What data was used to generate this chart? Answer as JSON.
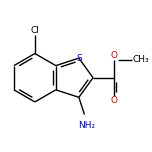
{
  "background_color": "#ffffff",
  "bond_color": "#000000",
  "atom_colors": {
    "S": "#0000cc",
    "N": "#0000cc",
    "O": "#cc0000",
    "Cl": "#000000",
    "C": "#000000"
  },
  "figsize": [
    1.52,
    1.52
  ],
  "dpi": 100,
  "bond_lw": 1.0,
  "font_size": 6.5,
  "L": 0.22
}
